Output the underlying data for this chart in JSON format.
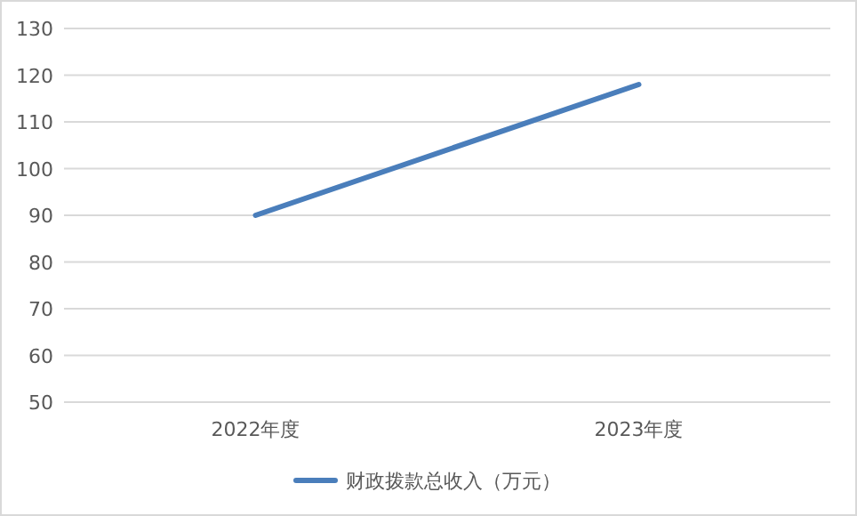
{
  "chart_data": {
    "type": "line",
    "categories": [
      "2022年度",
      "2023年度"
    ],
    "series": [
      {
        "name": "财政拨款总收入（万元）",
        "color": "#4a7ebb",
        "values": [
          90,
          118
        ]
      }
    ],
    "ylim": [
      50,
      130
    ],
    "yticks": [
      50,
      60,
      70,
      80,
      90,
      100,
      110,
      120,
      130
    ],
    "grid": "y",
    "legend": "bottom",
    "marker": "none",
    "line_style": "solid"
  }
}
